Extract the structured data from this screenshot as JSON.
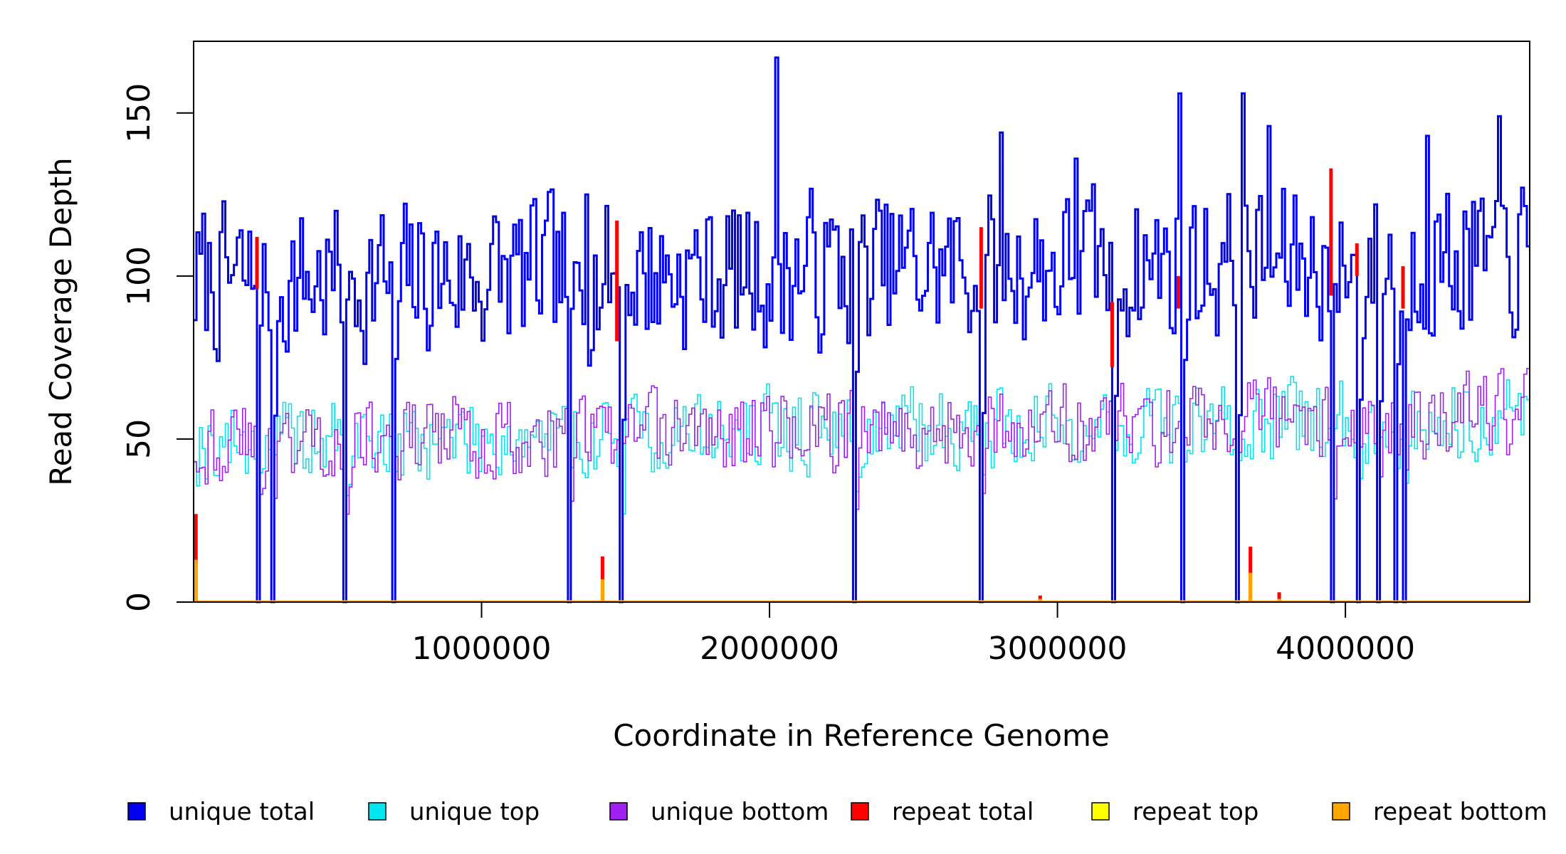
{
  "chart_data": {
    "type": "line",
    "title": "",
    "xlabel": "Coordinate in Reference Genome",
    "ylabel": "Read Coverage Depth",
    "xlim": [
      0,
      4640000
    ],
    "ylim": [
      0,
      172
    ],
    "grid": false,
    "legend_position": "bottom",
    "x_ticks": [
      {
        "value": 1000000,
        "label": "1000000"
      },
      {
        "value": 2000000,
        "label": "2000000"
      },
      {
        "value": 3000000,
        "label": "3000000"
      },
      {
        "value": 4000000,
        "label": "4000000"
      }
    ],
    "y_ticks": [
      {
        "value": 0,
        "label": "0"
      },
      {
        "value": 50,
        "label": "50"
      },
      {
        "value": 100,
        "label": "100"
      },
      {
        "value": 150,
        "label": "150"
      }
    ],
    "bin_size": 10000,
    "series": [
      {
        "name": "unique total",
        "key": "unique_total",
        "color": "#0000ee",
        "profile": {
          "base": 98,
          "spread": 26,
          "seed": 7
        }
      },
      {
        "name": "unique top",
        "key": "unique_top",
        "color": "#00e5ee",
        "profile": {
          "base": 49,
          "spread": 14,
          "seed": 19
        }
      },
      {
        "name": "unique bottom",
        "key": "unique_bottom",
        "color": "#a020f0",
        "profile": {
          "base": 49,
          "spread": 14,
          "seed": 43
        }
      },
      {
        "name": "repeat total",
        "key": "repeat_total",
        "color": "#ff0000"
      },
      {
        "name": "repeat top",
        "key": "repeat_top",
        "color": "#ffff00"
      },
      {
        "name": "repeat bottom",
        "key": "repeat_bottom",
        "color": "#ffa500"
      }
    ],
    "coverage_dropouts": [
      215000,
      270000,
      520000,
      690000,
      1300000,
      1480000,
      2290000,
      2730000,
      3190000,
      3430000,
      3620000,
      3950000,
      4040000,
      4110000,
      4170000,
      4200000
    ],
    "unique_total_spikes": [
      {
        "x": 2020000,
        "y": 167
      },
      {
        "x": 3420000,
        "y": 156
      },
      {
        "x": 3640000,
        "y": 156
      },
      {
        "x": 4280000,
        "y": 143
      },
      {
        "x": 3730000,
        "y": 146
      },
      {
        "x": 3060000,
        "y": 136
      },
      {
        "x": 1360000,
        "y": 125
      },
      {
        "x": 4530000,
        "y": 149
      },
      {
        "x": 4530000,
        "y": 149
      },
      {
        "x": 2800000,
        "y": 144
      },
      {
        "x": 4460000,
        "y": 120
      }
    ],
    "repeat_total_peaks": [
      {
        "x": 8000,
        "total": 27,
        "bottom": 13
      },
      {
        "x": 1420000,
        "total": 14,
        "bottom": 7
      },
      {
        "x": 2940000,
        "total": 2,
        "bottom": 1
      },
      {
        "x": 3670000,
        "total": 17,
        "bottom": 9
      },
      {
        "x": 3770000,
        "total": 3,
        "bottom": 1
      }
    ],
    "repeat_total_overlays": [
      {
        "x": 220000,
        "from": 96,
        "to": 112
      },
      {
        "x": 1470000,
        "from": 80,
        "to": 117
      },
      {
        "x": 2735000,
        "from": 90,
        "to": 115
      },
      {
        "x": 3950000,
        "from": 94,
        "to": 133
      },
      {
        "x": 4040000,
        "from": 100,
        "to": 110
      },
      {
        "x": 3190000,
        "from": 72,
        "to": 92
      },
      {
        "x": 3420000,
        "from": 90,
        "to": 100
      },
      {
        "x": 4200000,
        "from": 90,
        "to": 103
      }
    ]
  },
  "legend": {
    "items": [
      {
        "label": "unique total",
        "color": "#0000ee"
      },
      {
        "label": "unique top",
        "color": "#00e5ee"
      },
      {
        "label": "unique bottom",
        "color": "#a020f0"
      },
      {
        "label": "repeat total",
        "color": "#ff0000"
      },
      {
        "label": "repeat top",
        "color": "#ffff00"
      },
      {
        "label": "repeat bottom",
        "color": "#ffa500"
      }
    ]
  }
}
